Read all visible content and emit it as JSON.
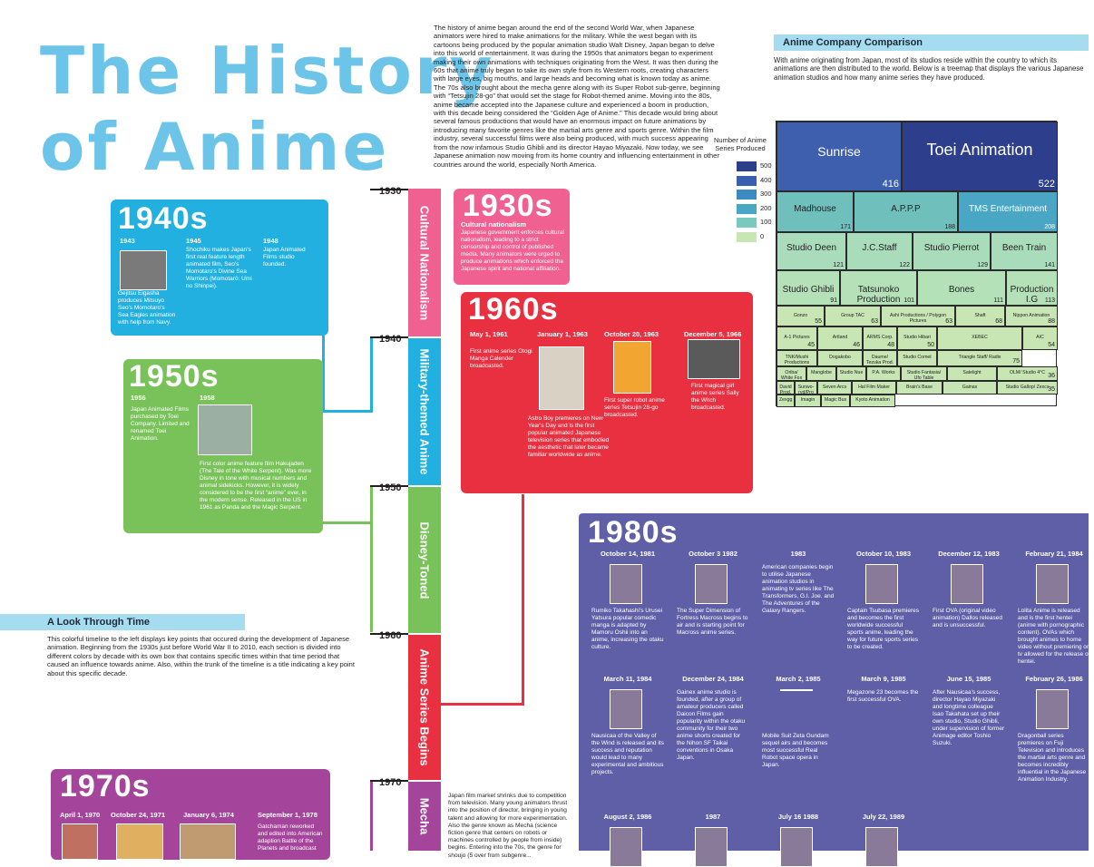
{
  "title_line1": "The History",
  "title_line2": "of Anime",
  "intro": "The history of anime began around the end of the second World War, when Japanese animators were hired to make animations for the military. While the west began with its cartoons being produced by the popular animation studio Walt Disney, Japan began to delve into this world of entertainment. It was during the 1950s that animators began to experiment making their own animations with techniques originating from the West. It was then during the 60s that anime truly began to take its own style from its Western roots, creating characters with large eyes, big mouths, and large heads and becoming what is known today as anime. The 70s also brought about the mecha genre along with its Super Robot sub-genre, beginning with “Tetsujin 28-go” that would set the stage for Robot-themed anime. Moving into the 80s, anime became accepted into the Japanese culture and experienced a boom in production, with this decade being considered the “Golden Age of Anime.” This decade would bring about several famous productions that would have an enormous impact on future animations by introducing many favorite genres like the martial arts genre and sports genre. Within the film industry, several successful films were also being produced, with much success appearing from the now infamous Studio Ghibli and its director Hayao Miyazaki. Now today, we see Japanese animation now moving from its home country and influencing entertainment in other countries around the world, especially North America.",
  "timeline": {
    "years": [
      "1930",
      "1940",
      "1950",
      "1960",
      "1970"
    ],
    "eras": [
      "Cultural Nationalism",
      "Military-themed Anime",
      "Disney-Toned",
      "Anime Series Begins",
      "Mecha"
    ]
  },
  "d1930": {
    "title": "1930s",
    "heading": "Cultural nationalism",
    "text": "Japanese government enforces cultural nationalism, leading to a strict censorship and control of published media. Many animators were urged to produce animations which enforced the Japanese spirit and national affiliation."
  },
  "d1940": {
    "title": "1940s",
    "events": [
      {
        "date": "1943",
        "text": "Gejitsu Eiga­sha produces Mitsuyo Seo's Momotaro's Sea Eagles anima­tion with help from Navy."
      },
      {
        "date": "1945",
        "text": "Shochiku makes Japan's first real feature length animated film, Seo's Momotaro's Divine Sea Warriors (Momotarō: Umi no Shinpei)."
      },
      {
        "date": "1948",
        "text": "Japan Animated Films studio founded."
      }
    ]
  },
  "d1950": {
    "title": "1950s",
    "events": [
      {
        "date": "1956",
        "text": "Japan Animated Films purchased by Toei Company. Lim­ited and renamed Toei Animation."
      },
      {
        "date": "1958",
        "text": "First color anime feature film Haku­jaden (The Tale of the White Ser­pent). Was more Disney in tone with musical numbers and animal sidekicks. However, it is widely considered to be the first “anime” ever, in the modern sense. Released in the US in 1961 as Panda and the Magic Serpent."
      }
    ]
  },
  "d1960": {
    "title": "1960s",
    "events": [
      {
        "date": "May 1, 1961",
        "text": "First anime series Otogi Manga Calen­der broadcasted."
      },
      {
        "date": "January 1, 1963",
        "text": "Astro Boy premieres on New Year's Day and is the first popular animated Japanese television series that embodied the aes­thetic that later became familiar worldwide as anime."
      },
      {
        "date": "October 20, 1963",
        "text": "First super robot anime series Tetsujin 28-go broadcasted."
      },
      {
        "date": "December 5, 1966",
        "text": "First magical girl anime series Sally the Witch broadcasted."
      }
    ]
  },
  "d1970": {
    "title": "1970s",
    "events": [
      {
        "date": "April 1, 1970",
        "text": ""
      },
      {
        "date": "October 24, 1971",
        "text": ""
      },
      {
        "date": "January 6, 1974",
        "text": ""
      },
      {
        "date": "September 1, 1978",
        "text": "Gatchaman reworked and edited into American adaption Battle of the Planets and broadcast"
      }
    ],
    "side_text": "Japan film market shrinks due to competition from television. Many young animators thrust into the position of director, bringing in young talent and allowing for more experimentation. Also the genre known as Mecha (science fiction genre that centers on robots or machines controlled by people from inside) begins. Entering into the 70s, the genre for shoujo (5 over from subgenre..."
  },
  "d1980": {
    "title": "1980s",
    "row1": [
      {
        "date": "October 14, 1981",
        "text": "Rumiko Takahashi's Urusei Yatsura popular comedic manga is adapted by Mamoru Oshii into an anime, increasing the otaku culture."
      },
      {
        "date": "October 3 1982",
        "text": "The Super Dimension of Fortress Macross begins to air and is starting point for Macross anime series."
      },
      {
        "date": "1983",
        "text": "American companies begin to utilise Japanese animation studios in animating tv series like The Transformers, G.I. Joe. and The Adventures of the Galaxy Rangers."
      },
      {
        "date": "October 10, 1983",
        "text": "Captain Tsubasa premieres and becomes the first worldwide successful sports anime, leading the way for future sports series to be created."
      },
      {
        "date": "December 12, 1983",
        "text": "First OVA (original video animation) Dallos released and is unsuccessful."
      },
      {
        "date": "February 21, 1984",
        "text": "Lolita Anime is released and is the first hentei (anime with porno­graphic content). OVAs which brought animes to home video without premiering on tv allowed for the release of hentei."
      }
    ],
    "row2": [
      {
        "date": "March 11, 1984",
        "text": "Nausicaa of the Valley of the Wind is released and its success and reputa­tion would lead to many experimental and ambitious projects."
      },
      {
        "date": "December 24, 1984",
        "text": "Gainex anime studio is founded, after a group of amateur producers called Daicon Films gain popularity within the otaku community for their two anime shorts created for the Nihon SF Taikai conventions in Osaka Japan."
      },
      {
        "date": "March 2, 1985",
        "text": "Mobile Suit Zeta Gundam sequel airs and becomes most successful Real Robot space opera in Japan."
      },
      {
        "date": "March 9, 1985",
        "text": "Megazone 23 becomes the first successful OVA."
      },
      {
        "date": "June 15, 1985",
        "text": "After Nausicaa's success, director Hayao Miyazaki and longtime colleague Isao Takahata set up their own studio, Studio Ghibli, under supervision of former Animage editor Toshio Suzuki."
      },
      {
        "date": "February 26, 1986",
        "text": "Dragonball series premieres on Fuji Television and intro­duces the martial arts genre and becomes incredibly influential in the Japanese Ani­mation Industry."
      }
    ],
    "row3": [
      {
        "date": "August 2, 1986"
      },
      {
        "date": "1987"
      },
      {
        "date": "July 16 1988"
      },
      {
        "date": "July 22, 1989"
      }
    ]
  },
  "look": {
    "header": "A Look Through Time",
    "text": "This colorful timeline to the left displays key points that occured during the development of Japanese animation. Beginning from the 1930s just before World War II to 2010, each section is divided into different colors by decade with its own box that contains specific times within that time period that caused an influence towards anime. Also, within the trunk of the timeline is a title indicating a key point about this specific decade."
  },
  "company": {
    "header": "Anime Company Comparison",
    "text": "With anime originating from Japan, most of its studios reside within the country to which its animations are then distributed to the world. Below is a treemap that displays the various Japanese animation studios and how many anime series they have produced.",
    "legend_title": "Number of Anime Series Produced",
    "legend": [
      {
        "label": "500",
        "color": "#2c3e8c"
      },
      {
        "label": "400",
        "color": "#3a5fae"
      },
      {
        "label": "300",
        "color": "#3b8bc2"
      },
      {
        "label": "200",
        "color": "#49a6c4"
      },
      {
        "label": "100",
        "color": "#79c9bf"
      },
      {
        "label": "0",
        "color": "#c8e6b4"
      }
    ]
  },
  "treemap": [
    {
      "name": "Sunrise",
      "value": "416",
      "color": "#3d5fae"
    },
    {
      "name": "Toei Animation",
      "value": "522",
      "color": "#2c3e8c"
    },
    {
      "name": "Madhouse",
      "value": "171",
      "color": "#6fc0bd"
    },
    {
      "name": "A.P.P.P",
      "value": "188",
      "color": "#6fc0bd"
    },
    {
      "name": "TMS Entertainment",
      "value": "208",
      "color": "#49a6c4"
    },
    {
      "name": "Studio Deen",
      "value": "121",
      "color": "#a9dcba"
    },
    {
      "name": "J.C.Staff",
      "value": "122",
      "color": "#a9dcba"
    },
    {
      "name": "Studio Pierrot",
      "value": "129",
      "color": "#a9dcba"
    },
    {
      "name": "Been Train",
      "value": "141",
      "color": "#a9dcba"
    },
    {
      "name": "Studio Ghibli",
      "value": "91",
      "color": "#b4e1b7"
    },
    {
      "name": "Tatsunoko Production",
      "value": "101",
      "color": "#b4e1b7"
    },
    {
      "name": "Bones",
      "value": "111",
      "color": "#b4e1b7"
    },
    {
      "name": "Production I.G",
      "value": "113",
      "color": "#b4e1b7"
    },
    {
      "name": "Gonzo",
      "value": "55",
      "color": "#c8e6b4"
    },
    {
      "name": "Group TAC",
      "value": "63",
      "color": "#c8e6b4"
    },
    {
      "name": "Ashi Productions / Polygon Pictures",
      "value": "63",
      "color": "#c8e6b4"
    },
    {
      "name": "Shaft",
      "value": "68",
      "color": "#c8e6b4"
    },
    {
      "name": "Nippon Animation",
      "value": "88",
      "color": "#c8e6b4"
    },
    {
      "name": "A-1 Pictures",
      "value": "45",
      "color": "#c8e6b4"
    },
    {
      "name": "Artland",
      "value": "46",
      "color": "#c8e6b4"
    },
    {
      "name": "ARMS Corp.",
      "value": "48",
      "color": "#c8e6b4"
    },
    {
      "name": "Studio Hibari",
      "value": "50",
      "color": "#c8e6b4"
    },
    {
      "name": "XEBEC",
      "value": "",
      "color": "#c8e6b4"
    },
    {
      "name": "AIC",
      "value": "54",
      "color": "#c8e6b4"
    },
    {
      "name": "TNK/Mushi Productions",
      "value": "",
      "color": "#c8e6b4"
    },
    {
      "name": "Doga­kobo",
      "value": "",
      "color": "#c8e6b4"
    },
    {
      "name": "Daume/ Tezuka Prod.",
      "value": "",
      "color": "#c8e6b4"
    },
    {
      "name": "Studio Comet",
      "value": "",
      "color": "#c8e6b4"
    },
    {
      "name": "Triangle Staff/ Radix",
      "value": "75",
      "color": "#c8e6b4"
    },
    {
      "name": "Oriba/ White Fox",
      "value": "",
      "color": "#c8e6b4"
    },
    {
      "name": "Mangl­obe",
      "value": "",
      "color": "#c8e6b4"
    },
    {
      "name": "Studio Nue",
      "value": "",
      "color": "#c8e6b4"
    },
    {
      "name": "P.A. Works",
      "value": "",
      "color": "#c8e6b4"
    },
    {
      "name": "Studio Fantasia/ Ufo Table",
      "value": "",
      "color": "#c8e6b4"
    },
    {
      "name": "Satelight",
      "value": "",
      "color": "#c8e6b4"
    },
    {
      "name": "OLM/ Studio 4°C",
      "value": "36",
      "color": "#c8e6b4"
    },
    {
      "name": "David Prod.",
      "value": "",
      "color": "#c8e6b4"
    },
    {
      "name": "Sunwo­ryd/Pro",
      "value": "",
      "color": "#c8e6b4"
    },
    {
      "name": "Seven Arcs",
      "value": "",
      "color": "#c8e6b4"
    },
    {
      "name": "Hal Film Maker",
      "value": "",
      "color": "#c8e6b4"
    },
    {
      "name": "Brain's Base",
      "value": "",
      "color": "#c8e6b4"
    },
    {
      "name": "Gainax",
      "value": "",
      "color": "#c8e6b4"
    },
    {
      "name": "Studio Gallop/ Zexcs",
      "value": "35",
      "color": "#c8e6b4"
    },
    {
      "name": "Zexgg",
      "value": "",
      "color": "#c8e6b4"
    },
    {
      "name": "Imagin",
      "value": "",
      "color": "#c8e6b4"
    },
    {
      "name": "Magic Bus",
      "value": "",
      "color": "#c8e6b4"
    },
    {
      "name": "Kyoto Animation",
      "value": "",
      "color": "#c8e6b4"
    }
  ]
}
